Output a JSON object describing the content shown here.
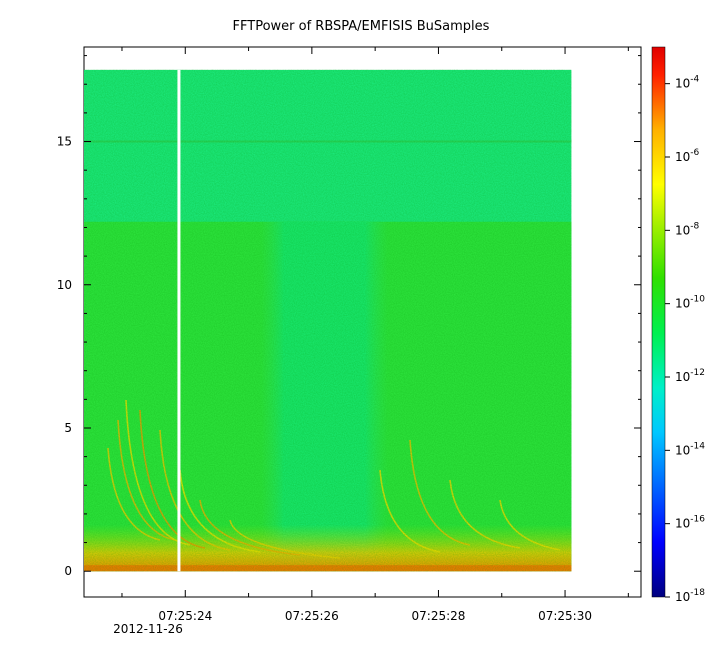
{
  "chart_data": {
    "type": "heatmap",
    "title": "FFTPower of RBSPA/EMFISIS  BuSamples",
    "xlabel": "",
    "ylabel": "",
    "x_tick_labels": [
      "07:25:24",
      "07:25:26",
      "07:25:28",
      "07:25:30"
    ],
    "x_date_label": "2012-11-26",
    "x_range": [
      "07:25:22.4",
      "07:25:31.2"
    ],
    "data_extent": [
      "07:25:22.4",
      "07:25:30.1"
    ],
    "gap_at": "07:25:23.9",
    "y_tick_labels": [
      "0",
      "5",
      "10",
      "15"
    ],
    "ylim": [
      -0.9,
      18.3
    ],
    "y_data_max": 17.5,
    "colorbar": {
      "scale": "log",
      "range": [
        "1e-18",
        "1e-3"
      ],
      "ticks": [
        {
          "base": "10",
          "exp": "-4"
        },
        {
          "base": "10",
          "exp": "-6"
        },
        {
          "base": "10",
          "exp": "-8"
        },
        {
          "base": "10",
          "exp": "-10"
        },
        {
          "base": "10",
          "exp": "-12"
        },
        {
          "base": "10",
          "exp": "-14"
        },
        {
          "base": "10",
          "exp": "-16"
        },
        {
          "base": "10",
          "exp": "-18"
        }
      ]
    },
    "features": {
      "background_level": "1e-12",
      "lower_band_level": "1e-10",
      "lower_band_max": 12.2,
      "quiet_interval": [
        "07:25:25.2",
        "07:25:27.2"
      ],
      "intense_band_max": 1.0,
      "intense_band_level": "1e-7",
      "line_at": 15
    }
  }
}
